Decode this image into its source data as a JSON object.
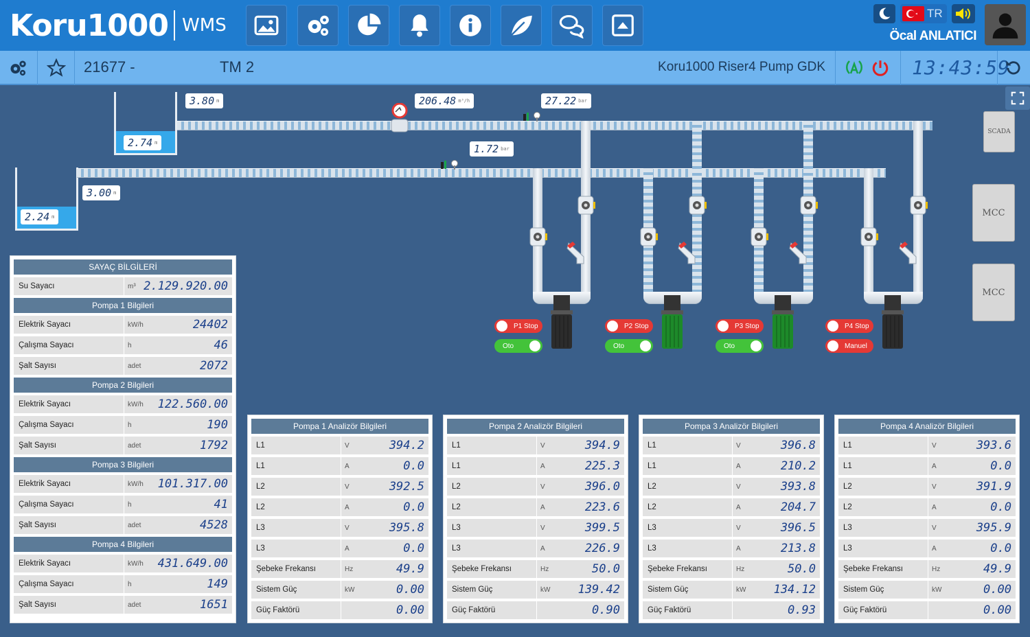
{
  "header": {
    "logo_text": "Koru1000",
    "logo_sub": "WMS",
    "nav": [
      "image-icon",
      "settings-icon",
      "chart-pie-icon",
      "bell-icon",
      "info-icon",
      "leaf-icon",
      "chat-icon",
      "upload-icon"
    ],
    "lang": "TR",
    "user": "Öcal ANLATICI"
  },
  "subheader": {
    "code": "21677 -",
    "name": "TM 2",
    "station": "Koru1000 Riser4 Pump GDK",
    "clock": "13:43:59"
  },
  "scada": {
    "tank_upper_level": "3.80",
    "tank_upper_water": "2.74",
    "tank_lower_level": "3.00",
    "tank_lower_water": "2.24",
    "flow": "206.48",
    "flow_unit": "m³/h",
    "pressure_upper": "27.22",
    "pressure_lower": "1.72",
    "pressure_unit": "bar",
    "level_unit": "m",
    "side_buttons": [
      "SCADA",
      "MCC",
      "MCC"
    ],
    "pumps": [
      {
        "stop": "P1 Stop",
        "mode": "Oto",
        "motor_color": "#2c2c2c",
        "mode_on": true
      },
      {
        "stop": "P2 Stop",
        "mode": "Oto",
        "motor_color": "#1d8a2a",
        "mode_on": true
      },
      {
        "stop": "P3 Stop",
        "mode": "Oto",
        "motor_color": "#1d8a2a",
        "mode_on": true
      },
      {
        "stop": "P4 Stop",
        "mode": "Manuel",
        "motor_color": "#2c2c2c",
        "mode_on": false
      }
    ]
  },
  "meters": {
    "title": "SAYAÇ BİLGİLERİ",
    "water": {
      "label": "Su Sayacı",
      "unit": "m³",
      "value": "2.129.920.00"
    },
    "pumps": [
      {
        "title": "Pompa 1 Bilgileri",
        "rows": [
          {
            "label": "Elektrik Sayacı",
            "unit": "kW/h",
            "value": "24402"
          },
          {
            "label": "Çalışma Sayacı",
            "unit": "h",
            "value": "46"
          },
          {
            "label": "Şalt Sayısı",
            "unit": "adet",
            "value": "2072"
          }
        ]
      },
      {
        "title": "Pompa 2 Bilgileri",
        "rows": [
          {
            "label": "Elektrik Sayacı",
            "unit": "kW/h",
            "value": "122.560.00"
          },
          {
            "label": "Çalışma Sayacı",
            "unit": "h",
            "value": "190"
          },
          {
            "label": "Şalt Sayısı",
            "unit": "adet",
            "value": "1792"
          }
        ]
      },
      {
        "title": "Pompa 3 Bilgileri",
        "rows": [
          {
            "label": "Elektrik Sayacı",
            "unit": "kW/h",
            "value": "101.317.00"
          },
          {
            "label": "Çalışma Sayacı",
            "unit": "h",
            "value": "41"
          },
          {
            "label": "Şalt Sayısı",
            "unit": "adet",
            "value": "4528"
          }
        ]
      },
      {
        "title": "Pompa 4 Bilgileri",
        "rows": [
          {
            "label": "Elektrik Sayacı",
            "unit": "kW/h",
            "value": "431.649.00"
          },
          {
            "label": "Çalışma Sayacı",
            "unit": "h",
            "value": "149"
          },
          {
            "label": "Şalt Sayısı",
            "unit": "adet",
            "value": "1651"
          }
        ]
      }
    ]
  },
  "analyzers": [
    {
      "title": "Pompa 1 Analizör Bilgileri",
      "rows": [
        {
          "label": "L1",
          "unit": "V",
          "value": "394.2"
        },
        {
          "label": "L1",
          "unit": "A",
          "value": "0.0"
        },
        {
          "label": "L2",
          "unit": "V",
          "value": "392.5"
        },
        {
          "label": "L2",
          "unit": "A",
          "value": "0.0"
        },
        {
          "label": "L3",
          "unit": "V",
          "value": "395.8"
        },
        {
          "label": "L3",
          "unit": "A",
          "value": "0.0"
        },
        {
          "label": "Şebeke Frekansı",
          "unit": "Hz",
          "value": "49.9"
        },
        {
          "label": "Sistem Güç",
          "unit": "kW",
          "value": "0.00"
        },
        {
          "label": "Güç Faktörü",
          "unit": "",
          "value": "0.00"
        }
      ]
    },
    {
      "title": "Pompa 2 Analizör Bilgileri",
      "rows": [
        {
          "label": "L1",
          "unit": "V",
          "value": "394.9"
        },
        {
          "label": "L1",
          "unit": "A",
          "value": "225.3"
        },
        {
          "label": "L2",
          "unit": "V",
          "value": "396.0"
        },
        {
          "label": "L2",
          "unit": "A",
          "value": "223.6"
        },
        {
          "label": "L3",
          "unit": "V",
          "value": "399.5"
        },
        {
          "label": "L3",
          "unit": "A",
          "value": "226.9"
        },
        {
          "label": "Şebeke Frekansı",
          "unit": "Hz",
          "value": "50.0"
        },
        {
          "label": "Sistem Güç",
          "unit": "kW",
          "value": "139.42"
        },
        {
          "label": "Güç Faktörü",
          "unit": "",
          "value": "0.90"
        }
      ]
    },
    {
      "title": "Pompa 3 Analizör Bilgileri",
      "rows": [
        {
          "label": "L1",
          "unit": "V",
          "value": "396.8"
        },
        {
          "label": "L1",
          "unit": "A",
          "value": "210.2"
        },
        {
          "label": "L2",
          "unit": "V",
          "value": "393.8"
        },
        {
          "label": "L2",
          "unit": "A",
          "value": "204.7"
        },
        {
          "label": "L3",
          "unit": "V",
          "value": "396.5"
        },
        {
          "label": "L3",
          "unit": "A",
          "value": "213.8"
        },
        {
          "label": "Şebeke Frekansı",
          "unit": "Hz",
          "value": "50.0"
        },
        {
          "label": "Sistem Güç",
          "unit": "kW",
          "value": "134.12"
        },
        {
          "label": "Güç Faktörü",
          "unit": "",
          "value": "0.93"
        }
      ]
    },
    {
      "title": "Pompa 4 Analizör Bilgileri",
      "rows": [
        {
          "label": "L1",
          "unit": "V",
          "value": "393.6"
        },
        {
          "label": "L1",
          "unit": "A",
          "value": "0.0"
        },
        {
          "label": "L2",
          "unit": "V",
          "value": "391.9"
        },
        {
          "label": "L2",
          "unit": "A",
          "value": "0.0"
        },
        {
          "label": "L3",
          "unit": "V",
          "value": "395.9"
        },
        {
          "label": "L3",
          "unit": "A",
          "value": "0.0"
        },
        {
          "label": "Şebeke Frekansı",
          "unit": "Hz",
          "value": "49.9"
        },
        {
          "label": "Sistem Güç",
          "unit": "kW",
          "value": "0.00"
        },
        {
          "label": "Güç Faktörü",
          "unit": "",
          "value": "0.00"
        }
      ]
    }
  ]
}
